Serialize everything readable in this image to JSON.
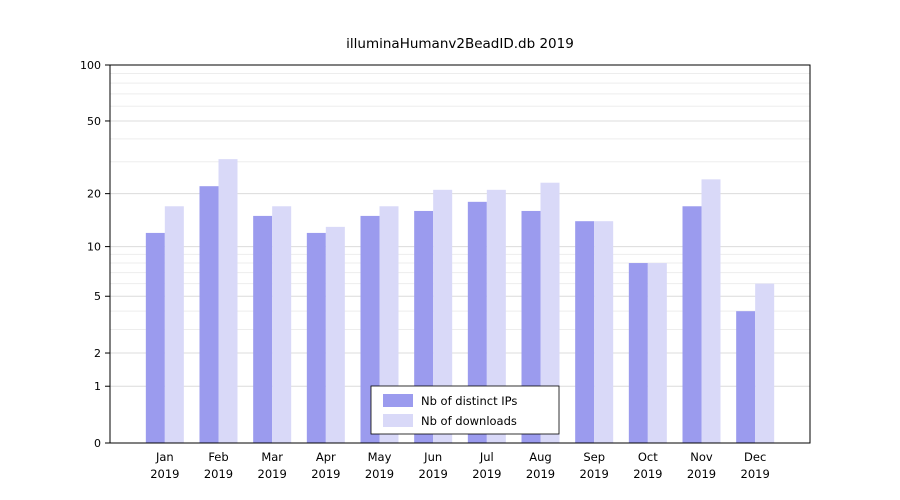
{
  "chart_data": {
    "type": "bar",
    "title": "illuminaHumanv2BeadID.db 2019",
    "categories": [
      "Jan",
      "Feb",
      "Mar",
      "Apr",
      "May",
      "Jun",
      "Jul",
      "Aug",
      "Sep",
      "Oct",
      "Nov",
      "Dec"
    ],
    "x_axis": {
      "year_label": "2019"
    },
    "y_axis": {
      "ticks": [
        100,
        50,
        20,
        10,
        5,
        2,
        1,
        0
      ],
      "minor_gridlines": [
        90,
        80,
        70,
        60,
        40,
        30,
        9,
        8,
        7,
        6,
        4,
        3
      ],
      "scale": "log10(value+1)",
      "ylim": [
        0,
        100
      ]
    },
    "series": [
      {
        "name": "Nb of distinct IPs",
        "color": "#9b9bee",
        "values": [
          12,
          22,
          15,
          12,
          15,
          16,
          18,
          16,
          14,
          8,
          17,
          4
        ]
      },
      {
        "name": "Nb of downloads",
        "color": "#d9d9f8",
        "values": [
          17,
          31,
          17,
          13,
          17,
          21,
          21,
          23,
          14,
          8,
          24,
          6
        ]
      }
    ],
    "legend": {
      "position": "bottom-center-inside"
    },
    "colors": {
      "axis": "#000000",
      "grid_major": "#dcdcdc",
      "grid_minor": "#ededed",
      "background": "#ffffff"
    }
  }
}
